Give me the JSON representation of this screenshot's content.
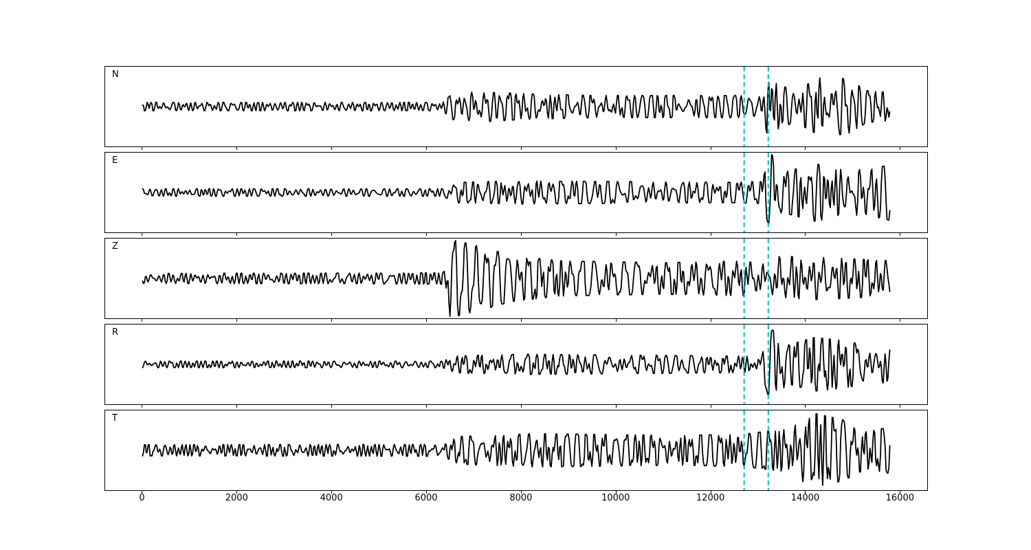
{
  "figure": {
    "background_color": "#ffffff",
    "frame_color": "#000000"
  },
  "chart_data": {
    "type": "line",
    "title": "",
    "xlabel": "",
    "ylabel": "",
    "grid": false,
    "legend": null,
    "xlim": [
      -790,
      16590
    ],
    "ylim": [
      -1,
      1
    ],
    "x_extent": [
      0,
      15800
    ],
    "x_ticks": [
      0,
      2000,
      4000,
      6000,
      8000,
      10000,
      12000,
      14000,
      16000
    ],
    "trace_color": "#000000",
    "vlines": [
      {
        "x": 12720,
        "color": "#00bfbf",
        "style": "dashed"
      },
      {
        "x": 13230,
        "color": "#00bfbf",
        "style": "dashed"
      }
    ],
    "envelope_units": "fraction_of_panel_half_height",
    "panels": [
      {
        "label": "N",
        "seed": 3,
        "envelope": [
          [
            0,
            0.09
          ],
          [
            6350,
            0.09
          ],
          [
            6550,
            0.28
          ],
          [
            7200,
            0.33
          ],
          [
            8000,
            0.28
          ],
          [
            9500,
            0.24
          ],
          [
            12600,
            0.24
          ],
          [
            13000,
            0.2
          ],
          [
            13150,
            0.25
          ],
          [
            13230,
            0.85
          ],
          [
            13400,
            0.5
          ],
          [
            13800,
            0.33
          ],
          [
            14300,
            0.62
          ],
          [
            14900,
            0.6
          ],
          [
            15300,
            0.35
          ],
          [
            15800,
            0.3
          ]
        ]
      },
      {
        "label": "E",
        "seed": 7,
        "envelope": [
          [
            0,
            0.08
          ],
          [
            6350,
            0.08
          ],
          [
            6600,
            0.22
          ],
          [
            8000,
            0.25
          ],
          [
            12500,
            0.22
          ],
          [
            13100,
            0.24
          ],
          [
            13280,
            0.85
          ],
          [
            13600,
            0.45
          ],
          [
            14200,
            0.62
          ],
          [
            14700,
            0.55
          ],
          [
            15300,
            0.48
          ],
          [
            15800,
            0.6
          ]
        ]
      },
      {
        "label": "Z",
        "seed": 11,
        "envelope": [
          [
            0,
            0.11
          ],
          [
            6300,
            0.12
          ],
          [
            6380,
            0.15
          ],
          [
            6500,
            0.85
          ],
          [
            6700,
            0.8
          ],
          [
            7100,
            0.7
          ],
          [
            7800,
            0.5
          ],
          [
            8800,
            0.38
          ],
          [
            11000,
            0.34
          ],
          [
            12800,
            0.38
          ],
          [
            13500,
            0.48
          ],
          [
            14500,
            0.45
          ],
          [
            15800,
            0.38
          ]
        ]
      },
      {
        "label": "R",
        "seed": 5,
        "envelope": [
          [
            0,
            0.07
          ],
          [
            6350,
            0.07
          ],
          [
            6600,
            0.18
          ],
          [
            8000,
            0.22
          ],
          [
            12500,
            0.18
          ],
          [
            13100,
            0.2
          ],
          [
            13260,
            0.8
          ],
          [
            13650,
            0.42
          ],
          [
            14200,
            0.58
          ],
          [
            14800,
            0.52
          ],
          [
            15400,
            0.4
          ],
          [
            15800,
            0.5
          ]
        ]
      },
      {
        "label": "T",
        "seed": 9,
        "envelope": [
          [
            0,
            0.12
          ],
          [
            6350,
            0.13
          ],
          [
            6700,
            0.3
          ],
          [
            8300,
            0.36
          ],
          [
            11500,
            0.32
          ],
          [
            12800,
            0.36
          ],
          [
            13500,
            0.45
          ],
          [
            14200,
            0.8
          ],
          [
            14800,
            0.66
          ],
          [
            15300,
            0.4
          ],
          [
            15800,
            0.5
          ]
        ]
      }
    ]
  }
}
